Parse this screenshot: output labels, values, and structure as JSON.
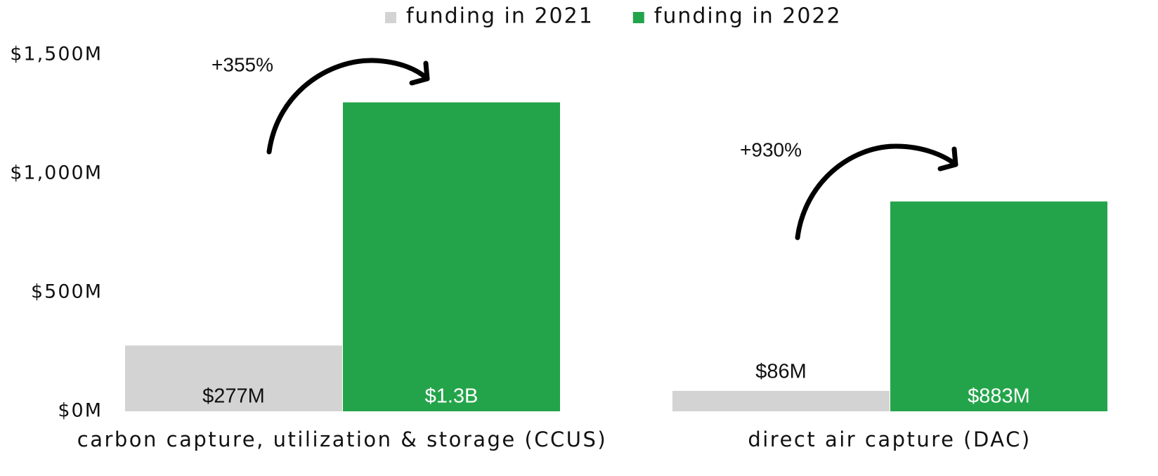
{
  "chart_data": {
    "type": "bar",
    "categories": [
      "carbon capture, utilization & storage (CCUS)",
      "direct air capture (DAC)"
    ],
    "series": [
      {
        "name": "funding in 2021",
        "color": "#d3d3d3",
        "values": [
          277,
          86
        ],
        "value_labels": [
          "$277M",
          "$86M"
        ]
      },
      {
        "name": "funding in 2022",
        "color": "#24a44a",
        "values": [
          1300,
          883
        ],
        "value_labels": [
          "$1.3B",
          "$883M"
        ]
      }
    ],
    "annotations": [
      "+355%",
      "+930%"
    ],
    "ylim": [
      0,
      1500
    ],
    "yticks": [
      {
        "value": 0,
        "label": "$0M"
      },
      {
        "value": 500,
        "label": "$500M"
      },
      {
        "value": 1000,
        "label": "$1,000M"
      },
      {
        "value": 1500,
        "label": "$1,500M"
      }
    ],
    "grid": false
  }
}
